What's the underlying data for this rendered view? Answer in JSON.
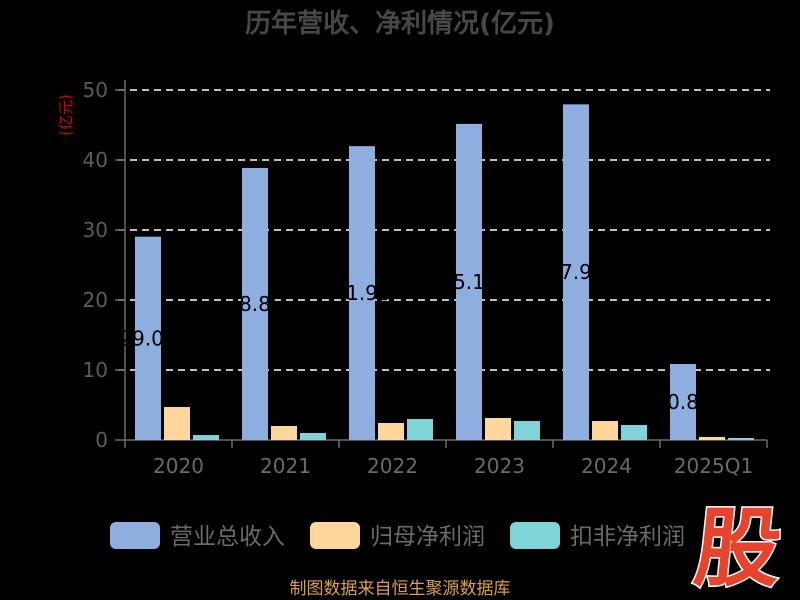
{
  "chart_data": {
    "type": "bar",
    "title": "历年营收、净利情况(亿元)",
    "xlabel": "",
    "ylabel": "(亿元)",
    "categories": [
      "2020",
      "2021",
      "2022",
      "2023",
      "2024",
      "2025Q1"
    ],
    "ylim": [
      0,
      50
    ],
    "yticks": [
      0,
      10,
      20,
      30,
      40,
      50
    ],
    "grid": true,
    "legend_position": "bottom",
    "series": [
      {
        "name": "营业总收入",
        "color": "#8faee0",
        "show_data_labels": true,
        "values": [
          29.05,
          38.86,
          41.98,
          45.16,
          47.95,
          10.86
        ]
      },
      {
        "name": "归母净利润",
        "color": "#ffd79c",
        "show_data_labels": false,
        "values": [
          4.71,
          2.0,
          2.43,
          3.14,
          2.71,
          0.43
        ]
      },
      {
        "name": "扣非净利润",
        "color": "#80d4d8",
        "show_data_labels": false,
        "values": [
          0.71,
          1.0,
          3.0,
          2.71,
          2.14,
          0.29
        ]
      }
    ]
  },
  "footer": {
    "source": "制图数据来自恒生聚源数据库"
  },
  "logo": {
    "text": "股"
  }
}
